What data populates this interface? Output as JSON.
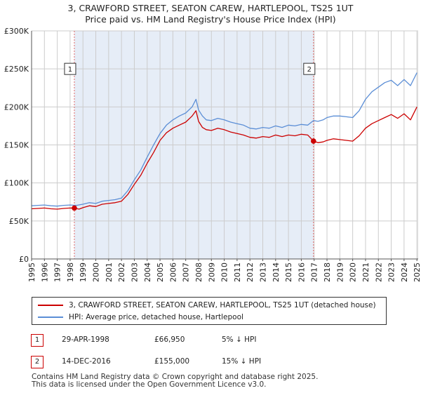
{
  "title_line1": "3, CRAWFORD STREET, SEATON CAREW, HARTLEPOOL, TS25 1UT",
  "title_line2": "Price paid vs. HM Land Registry's House Price Index (HPI)",
  "colors": {
    "property": "#cc0000",
    "hpi": "#5b8ed6",
    "shade": "#e6edf7",
    "grid": "#cccccc",
    "marker_line": "#e06666"
  },
  "legend": {
    "property_label": "3, CRAWFORD STREET, SEATON CAREW, HARTLEPOOL, TS25 1UT (detached house)",
    "hpi_label": "HPI: Average price, detached house, Hartlepool"
  },
  "transactions": [
    {
      "num": "1",
      "date": "29-APR-1998",
      "price": "£66,950",
      "hpi_diff": "5% ↓ HPI"
    },
    {
      "num": "2",
      "date": "14-DEC-2016",
      "price": "£155,000",
      "hpi_diff": "15% ↓ HPI"
    }
  ],
  "footer_line1": "Contains HM Land Registry data © Crown copyright and database right 2025.",
  "footer_line2": "This data is licensed under the Open Government Licence v3.0.",
  "chart_data": {
    "type": "line",
    "title": "3, CRAWFORD STREET, SEATON CAREW, HARTLEPOOL, TS25 1UT",
    "subtitle": "Price paid vs. HM Land Registry's House Price Index (HPI)",
    "xlabel": "",
    "ylabel": "",
    "xlim": [
      1995,
      2025.1
    ],
    "ylim": [
      0,
      300000
    ],
    "x_ticks": [
      "1995",
      "1996",
      "1997",
      "1998",
      "1999",
      "2000",
      "2001",
      "2002",
      "2003",
      "2004",
      "2005",
      "2006",
      "2007",
      "2008",
      "2009",
      "2010",
      "2011",
      "2012",
      "2013",
      "2014",
      "2015",
      "2016",
      "2017",
      "2018",
      "2019",
      "2020",
      "2021",
      "2022",
      "2023",
      "2024",
      "2025"
    ],
    "y_ticks": [
      {
        "value": 0,
        "label": "£0"
      },
      {
        "value": 50000,
        "label": "£50K"
      },
      {
        "value": 100000,
        "label": "£100K"
      },
      {
        "value": 150000,
        "label": "£150K"
      },
      {
        "value": 200000,
        "label": "£200K"
      },
      {
        "value": 250000,
        "label": "£250K"
      },
      {
        "value": 300000,
        "label": "£300K"
      }
    ],
    "grid": true,
    "shaded_region": [
      1998.33,
      2016.95
    ],
    "sales": [
      {
        "label": "1",
        "x": 1998.33,
        "y": 66950
      },
      {
        "label": "2",
        "x": 2016.95,
        "y": 155000
      }
    ],
    "series": [
      {
        "name": "3, CRAWFORD STREET, SEATON CAREW, HARTLEPOOL, TS25 1UT (detached house)",
        "x": [
          1995,
          1995.5,
          1996,
          1996.5,
          1997,
          1997.5,
          1998,
          1998.33,
          1998.7,
          1999,
          1999.5,
          2000,
          2000.5,
          2001,
          2001.5,
          2002,
          2002.5,
          2003,
          2003.5,
          2004,
          2004.5,
          2005,
          2005.5,
          2006,
          2006.5,
          2007,
          2007.5,
          2007.8,
          2008,
          2008.3,
          2008.6,
          2009,
          2009.5,
          2010,
          2010.5,
          2011,
          2011.5,
          2012,
          2012.5,
          2013,
          2013.5,
          2014,
          2014.5,
          2015,
          2015.5,
          2016,
          2016.5,
          2016.95,
          2017.3,
          2017.7,
          2018,
          2018.5,
          2019,
          2019.5,
          2020,
          2020.5,
          2021,
          2021.5,
          2022,
          2022.5,
          2023,
          2023.5,
          2024,
          2024.5,
          2025
        ],
        "values": [
          66000,
          66500,
          67000,
          66000,
          65500,
          66500,
          67000,
          66950,
          65500,
          67500,
          70000,
          69000,
          72000,
          73000,
          74000,
          76000,
          85000,
          98000,
          110000,
          126000,
          140000,
          156000,
          166000,
          172000,
          176000,
          180000,
          188000,
          195000,
          181000,
          173000,
          170000,
          169000,
          172000,
          170000,
          167000,
          165000,
          163000,
          160000,
          159000,
          161000,
          160000,
          163000,
          161000,
          163000,
          162000,
          164000,
          163000,
          155000,
          153000,
          154000,
          156000,
          158000,
          157000,
          156000,
          155000,
          162000,
          172000,
          178000,
          182000,
          186000,
          190000,
          185000,
          191000,
          183000,
          200000
        ]
      },
      {
        "name": "HPI: Average price, detached house, Hartlepool",
        "x": [
          1995,
          1995.5,
          1996,
          1996.5,
          1997,
          1997.5,
          1998,
          1998.5,
          1999,
          1999.5,
          2000,
          2000.5,
          2001,
          2001.5,
          2002,
          2002.5,
          2003,
          2003.5,
          2004,
          2004.5,
          2005,
          2005.5,
          2006,
          2006.5,
          2007,
          2007.5,
          2007.8,
          2008,
          2008.3,
          2008.6,
          2009,
          2009.5,
          2010,
          2010.5,
          2011,
          2011.5,
          2012,
          2012.5,
          2013,
          2013.5,
          2014,
          2014.5,
          2015,
          2015.5,
          2016,
          2016.5,
          2016.95,
          2017.3,
          2017.7,
          2018,
          2018.5,
          2019,
          2019.5,
          2020,
          2020.5,
          2021,
          2021.5,
          2022,
          2022.5,
          2023,
          2023.5,
          2024,
          2024.5,
          2025
        ],
        "values": [
          70000,
          70500,
          71000,
          70000,
          69500,
          70500,
          71000,
          70500,
          72000,
          74000,
          73000,
          76000,
          77000,
          78000,
          80000,
          90000,
          104000,
          117000,
          134000,
          150000,
          165000,
          176000,
          183000,
          188000,
          192000,
          200000,
          210000,
          196000,
          188000,
          183000,
          182000,
          185000,
          183000,
          180000,
          178000,
          176000,
          172000,
          171000,
          173000,
          172000,
          175000,
          173000,
          176000,
          175000,
          177000,
          176000,
          182000,
          181000,
          183000,
          186000,
          188000,
          188000,
          187000,
          186000,
          195000,
          210000,
          220000,
          226000,
          232000,
          235000,
          228000,
          236000,
          228000,
          245000
        ]
      }
    ]
  }
}
